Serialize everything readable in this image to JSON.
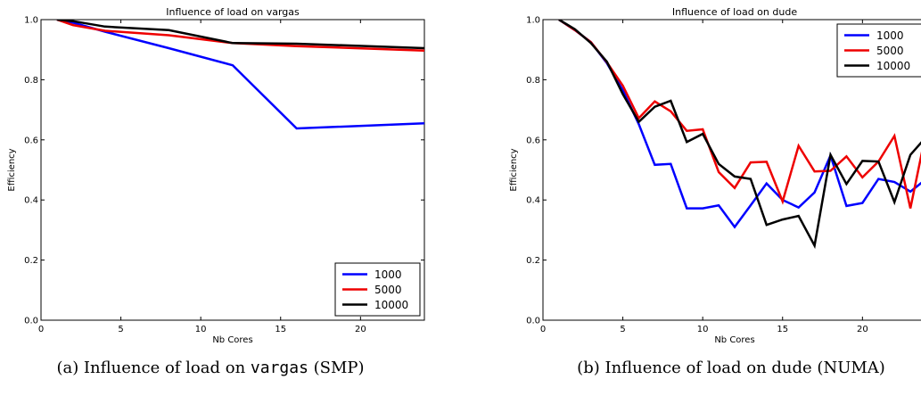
{
  "chart_data": [
    {
      "type": "line",
      "title": "Influence of load on vargas",
      "xlabel": "Nb Cores",
      "ylabel": "Efficiency",
      "xlim": [
        0,
        24
      ],
      "ylim": [
        0.0,
        1.0
      ],
      "xticks": [
        0,
        5,
        10,
        15,
        20
      ],
      "yticks": [
        0.0,
        0.2,
        0.4,
        0.6,
        0.8,
        1.0
      ],
      "grid": false,
      "legend": "lower-right",
      "series": [
        {
          "name": "1000",
          "color": "#0000ff",
          "x": [
            1,
            2,
            4,
            8,
            12,
            16,
            24
          ],
          "y": [
            1.0,
            0.99,
            0.96,
            0.905,
            0.848,
            0.638,
            0.655
          ]
        },
        {
          "name": "5000",
          "color": "#ee0000",
          "x": [
            1,
            2,
            4,
            8,
            12,
            16,
            24
          ],
          "y": [
            1.0,
            0.982,
            0.963,
            0.948,
            0.922,
            0.912,
            0.897
          ]
        },
        {
          "name": "10000",
          "color": "#000000",
          "x": [
            1,
            2,
            4,
            8,
            12,
            16,
            24
          ],
          "y": [
            1.0,
            0.995,
            0.977,
            0.965,
            0.922,
            0.92,
            0.905
          ]
        }
      ],
      "caption": {
        "prefix": "(a) Influence of load on ",
        "code": "vargas",
        "suffix": " (SMP)"
      }
    },
    {
      "type": "line",
      "title": "Influence of load on dude",
      "xlabel": "Nb Cores",
      "ylabel": "Efficiency",
      "xlim": [
        0,
        24
      ],
      "ylim": [
        0.0,
        1.0
      ],
      "xticks": [
        0,
        5,
        10,
        15,
        20
      ],
      "yticks": [
        0.0,
        0.2,
        0.4,
        0.6,
        0.8,
        1.0
      ],
      "grid": false,
      "legend": "upper-right",
      "series": [
        {
          "name": "1000",
          "color": "#0000ff",
          "x": [
            1,
            2,
            3,
            4,
            5,
            6,
            7,
            8,
            9,
            10,
            11,
            12,
            13,
            14,
            15,
            16,
            17,
            18,
            19,
            20,
            21,
            22,
            23,
            24
          ],
          "y": [
            1.0,
            0.965,
            0.925,
            0.855,
            0.765,
            0.652,
            0.517,
            0.52,
            0.372,
            0.372,
            0.382,
            0.31,
            0.382,
            0.455,
            0.4,
            0.375,
            0.425,
            0.548,
            0.38,
            0.39,
            0.47,
            0.46,
            0.428,
            0.47
          ]
        },
        {
          "name": "5000",
          "color": "#ee0000",
          "x": [
            1,
            2,
            3,
            4,
            5,
            6,
            7,
            8,
            9,
            10,
            11,
            12,
            13,
            14,
            15,
            16,
            17,
            18,
            19,
            20,
            21,
            22,
            23,
            24
          ],
          "y": [
            1.0,
            0.965,
            0.925,
            0.858,
            0.78,
            0.672,
            0.728,
            0.695,
            0.63,
            0.635,
            0.493,
            0.44,
            0.525,
            0.527,
            0.395,
            0.58,
            0.495,
            0.497,
            0.545,
            0.475,
            0.528,
            0.613,
            0.372,
            0.63
          ]
        },
        {
          "name": "10000",
          "color": "#000000",
          "x": [
            1,
            2,
            3,
            4,
            5,
            6,
            7,
            8,
            9,
            10,
            11,
            12,
            13,
            14,
            15,
            16,
            17,
            18,
            19,
            20,
            21,
            22,
            23,
            24
          ],
          "y": [
            1.0,
            0.968,
            0.922,
            0.86,
            0.752,
            0.66,
            0.71,
            0.73,
            0.593,
            0.62,
            0.52,
            0.478,
            0.47,
            0.317,
            0.335,
            0.347,
            0.248,
            0.55,
            0.453,
            0.53,
            0.528,
            0.393,
            0.55,
            0.61
          ]
        }
      ],
      "caption": {
        "prefix": "(b) Influence of load on dude (NUMA)",
        "code": "",
        "suffix": ""
      }
    }
  ]
}
